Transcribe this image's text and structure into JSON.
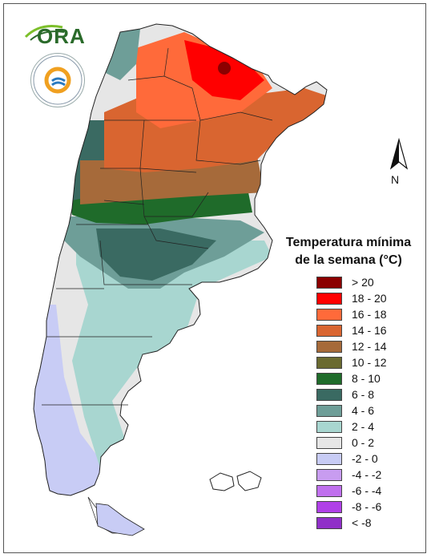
{
  "logo": {
    "brand_text": "ORA",
    "seal_text": "SERVICIO METEOROLÓGICO NACIONAL ARGENTINA"
  },
  "compass": {
    "north_label": "N"
  },
  "legend": {
    "title_line1": "Temperatura mínima",
    "title_line2": "de la semana (°C)",
    "items": [
      {
        "label": "> 20",
        "color": "#8b0000"
      },
      {
        "label": "18 - 20",
        "color": "#ff0000"
      },
      {
        "label": "16 - 18",
        "color": "#ff6a3a"
      },
      {
        "label": "14 - 16",
        "color": "#d96530"
      },
      {
        "label": "12 - 14",
        "color": "#a66a3a"
      },
      {
        "label": "10 - 12",
        "color": "#6a6a30"
      },
      {
        "label": "8 - 10",
        "color": "#1f6b2a"
      },
      {
        "label": "6 - 8",
        "color": "#3a6a62"
      },
      {
        "label": "4 - 6",
        "color": "#6e9e98"
      },
      {
        "label": "2 - 4",
        "color": "#a8d6d0"
      },
      {
        "label": "0 - 2",
        "color": "#e6e6e6"
      },
      {
        "label": "-2 - 0",
        "color": "#c8ccf5"
      },
      {
        "label": "-4 - -2",
        "color": "#c89cf0"
      },
      {
        "label": "-6 - -4",
        "color": "#c070ee"
      },
      {
        "label": "-8 - -6",
        "color": "#b040e8"
      },
      {
        "label": "< -8",
        "color": "#9030c8"
      }
    ]
  }
}
